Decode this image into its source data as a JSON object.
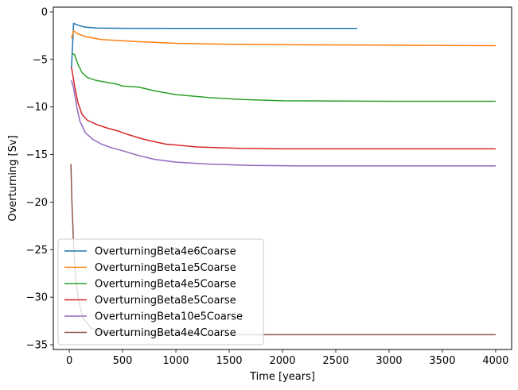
{
  "chart_data": {
    "type": "line",
    "xlabel": "Time [years]",
    "ylabel": "Overturning [Sv]",
    "xlim": [
      -150,
      4150
    ],
    "ylim": [
      -35.5,
      0.5
    ],
    "xticks": [
      0,
      500,
      1000,
      1500,
      2000,
      2500,
      3000,
      3500,
      4000
    ],
    "yticks": [
      0,
      -5,
      -10,
      -15,
      -20,
      -25,
      -30,
      -35
    ],
    "grid": false,
    "legend_position": "lower-left",
    "series": [
      {
        "name": "OverturningBeta4e6Coarse",
        "color": "#1f77b4",
        "points": [
          [
            20,
            -6.0
          ],
          [
            40,
            -1.2
          ],
          [
            80,
            -1.4
          ],
          [
            150,
            -1.6
          ],
          [
            250,
            -1.7
          ],
          [
            500,
            -1.72
          ],
          [
            1000,
            -1.73
          ],
          [
            1500,
            -1.73
          ],
          [
            2000,
            -1.73
          ],
          [
            2700,
            -1.73
          ]
        ]
      },
      {
        "name": "OverturningBeta1e5Coarse",
        "color": "#ff7f0e",
        "points": [
          [
            20,
            -2.8
          ],
          [
            40,
            -2.0
          ],
          [
            80,
            -2.3
          ],
          [
            150,
            -2.6
          ],
          [
            300,
            -2.9
          ],
          [
            600,
            -3.1
          ],
          [
            1000,
            -3.3
          ],
          [
            1500,
            -3.4
          ],
          [
            2000,
            -3.45
          ],
          [
            3000,
            -3.5
          ],
          [
            4000,
            -3.55
          ]
        ]
      },
      {
        "name": "OverturningBeta4e5Coarse",
        "color": "#2ca02c",
        "points": [
          [
            20,
            -4.3
          ],
          [
            50,
            -4.5
          ],
          [
            80,
            -5.5
          ],
          [
            120,
            -6.4
          ],
          [
            170,
            -6.9
          ],
          [
            250,
            -7.2
          ],
          [
            350,
            -7.4
          ],
          [
            450,
            -7.6
          ],
          [
            500,
            -7.8
          ],
          [
            650,
            -7.9
          ],
          [
            800,
            -8.3
          ],
          [
            1000,
            -8.7
          ],
          [
            1300,
            -9.0
          ],
          [
            1600,
            -9.2
          ],
          [
            2000,
            -9.35
          ],
          [
            3000,
            -9.4
          ],
          [
            4000,
            -9.4
          ]
        ]
      },
      {
        "name": "OverturningBeta8e5Coarse",
        "color": "#d62728",
        "points": [
          [
            20,
            -5.8
          ],
          [
            50,
            -7.8
          ],
          [
            80,
            -9.5
          ],
          [
            120,
            -10.8
          ],
          [
            170,
            -11.4
          ],
          [
            250,
            -11.8
          ],
          [
            350,
            -12.2
          ],
          [
            450,
            -12.5
          ],
          [
            550,
            -12.9
          ],
          [
            700,
            -13.4
          ],
          [
            900,
            -13.9
          ],
          [
            1200,
            -14.2
          ],
          [
            1600,
            -14.35
          ],
          [
            2000,
            -14.4
          ],
          [
            3000,
            -14.4
          ],
          [
            4000,
            -14.4
          ]
        ]
      },
      {
        "name": "OverturningBeta10e5Coarse",
        "color": "#9467bd",
        "points": [
          [
            20,
            -7.2
          ],
          [
            40,
            -8.0
          ],
          [
            70,
            -10.0
          ],
          [
            100,
            -11.5
          ],
          [
            150,
            -12.7
          ],
          [
            220,
            -13.4
          ],
          [
            300,
            -13.9
          ],
          [
            400,
            -14.3
          ],
          [
            500,
            -14.6
          ],
          [
            650,
            -15.1
          ],
          [
            800,
            -15.5
          ],
          [
            1000,
            -15.8
          ],
          [
            1300,
            -16.0
          ],
          [
            1700,
            -16.15
          ],
          [
            2200,
            -16.2
          ],
          [
            3000,
            -16.2
          ],
          [
            4000,
            -16.2
          ]
        ]
      },
      {
        "name": "OverturningBeta4e4Coarse",
        "color": "#8c564b",
        "points": [
          [
            15,
            -16.0
          ],
          [
            25,
            -20.0
          ],
          [
            40,
            -24.5
          ],
          [
            60,
            -28.0
          ],
          [
            90,
            -30.5
          ],
          [
            130,
            -32.2
          ],
          [
            200,
            -33.2
          ],
          [
            300,
            -33.7
          ],
          [
            500,
            -33.9
          ],
          [
            1000,
            -33.95
          ],
          [
            2000,
            -33.95
          ],
          [
            3000,
            -33.95
          ],
          [
            4000,
            -33.95
          ]
        ]
      }
    ]
  }
}
